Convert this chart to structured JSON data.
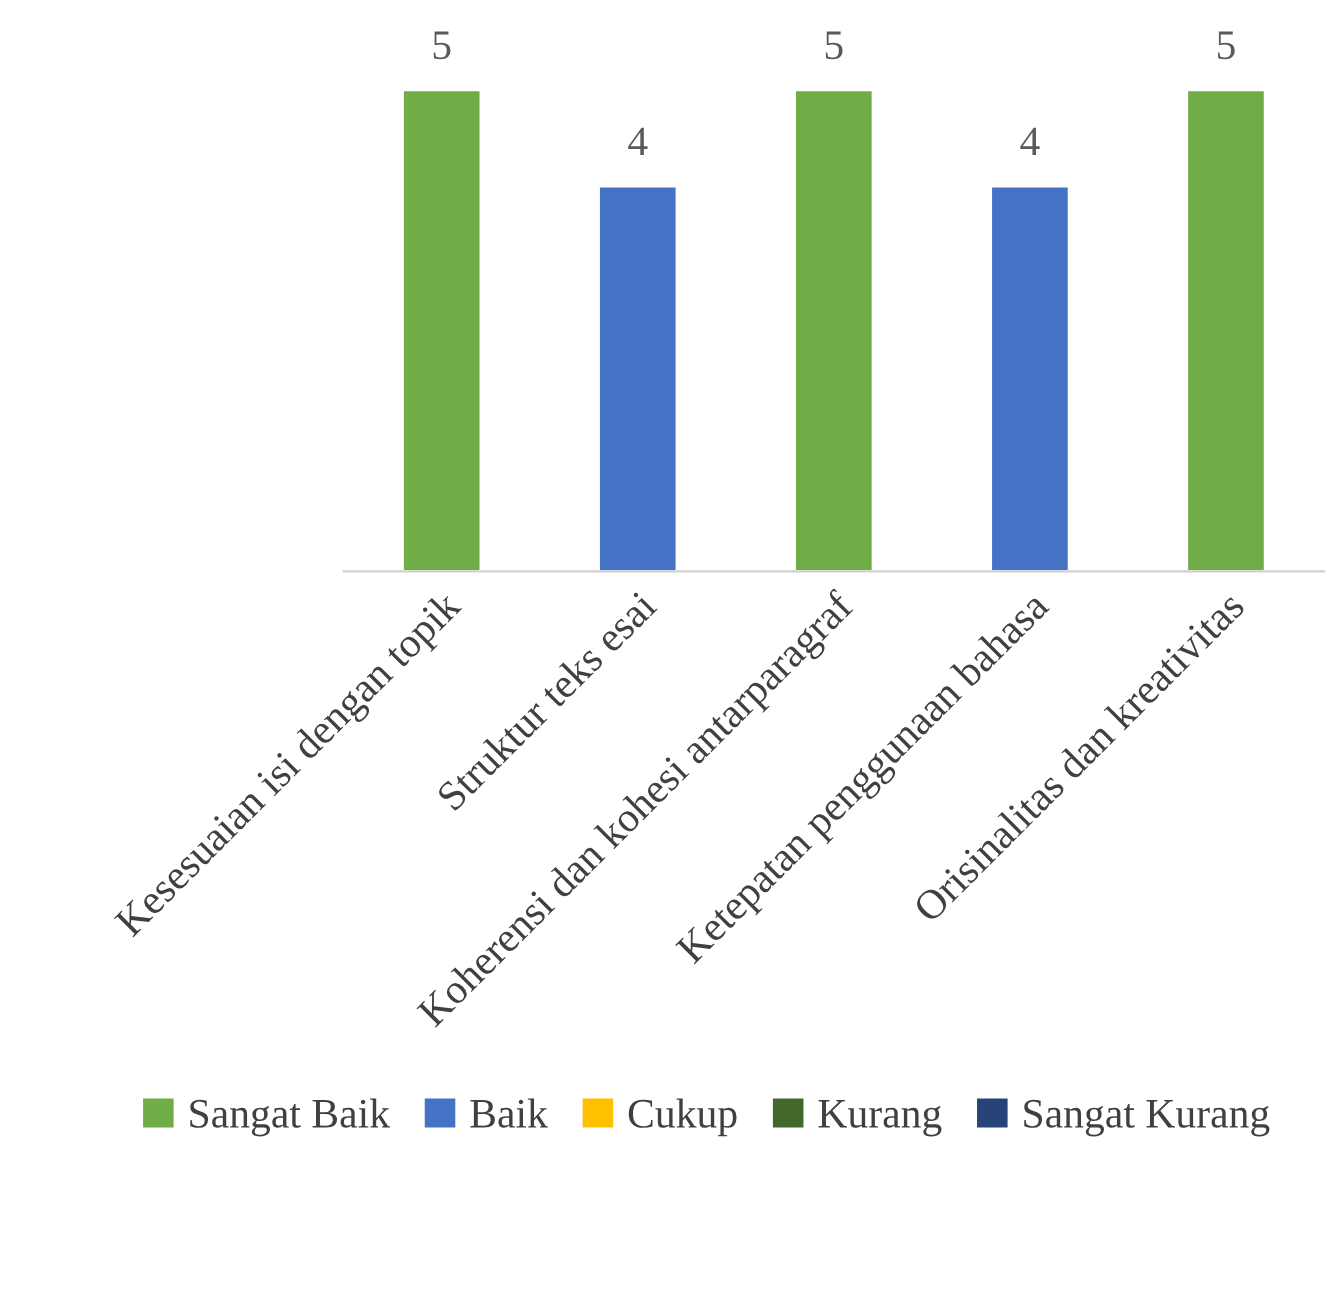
{
  "chart_data": {
    "type": "bar",
    "categories": [
      "Kesesuaian isi dengan topik",
      "Struktur teks esai",
      "Koherensi dan kohesi antarparagraf",
      "Ketepatan penggunaan bahasa",
      "Orisinalitas dan kreativitas"
    ],
    "series": [
      {
        "name": "Sangat Baik",
        "color": "#70ad47",
        "values": [
          5,
          null,
          5,
          null,
          5
        ]
      },
      {
        "name": "Baik",
        "color": "#4472c4",
        "values": [
          null,
          4,
          null,
          4,
          null
        ]
      },
      {
        "name": "Cukup",
        "color": "#ffc000",
        "values": [
          null,
          null,
          null,
          null,
          null
        ]
      },
      {
        "name": "Kurang",
        "color": "#43682b",
        "values": [
          null,
          null,
          null,
          null,
          null
        ]
      },
      {
        "name": "Sangat Kurang",
        "color": "#264478",
        "values": [
          null,
          null,
          null,
          null,
          null
        ]
      }
    ],
    "data_labels": true,
    "tick_labels": "x",
    "grid": false,
    "legend": "bottom"
  }
}
